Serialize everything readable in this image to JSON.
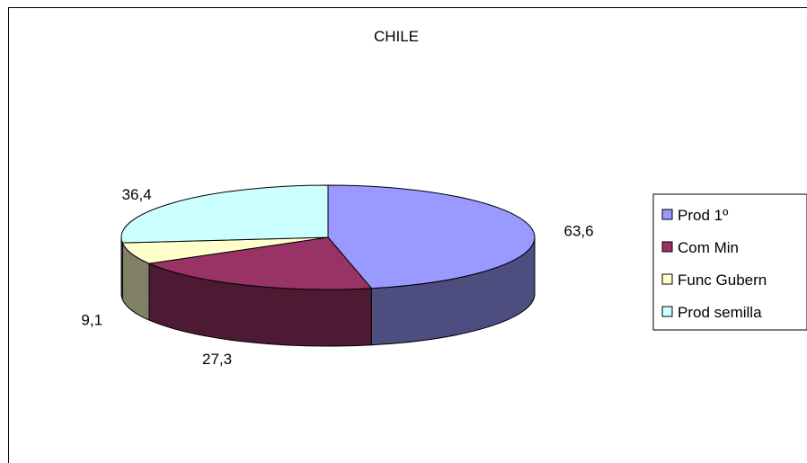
{
  "chart_data": {
    "type": "pie",
    "title": "CHILE",
    "categories": [
      "Prod 1º",
      "Com Min",
      "Func Gubern",
      "Prod semilla"
    ],
    "values": [
      63.6,
      27.3,
      9.1,
      36.4
    ],
    "labels": [
      "63,6",
      "27,3",
      "9,1",
      "36,4"
    ],
    "colors": [
      "#9999ff",
      "#993366",
      "#ffffcc",
      "#ccffff"
    ],
    "legend": "right",
    "style": "3d"
  }
}
